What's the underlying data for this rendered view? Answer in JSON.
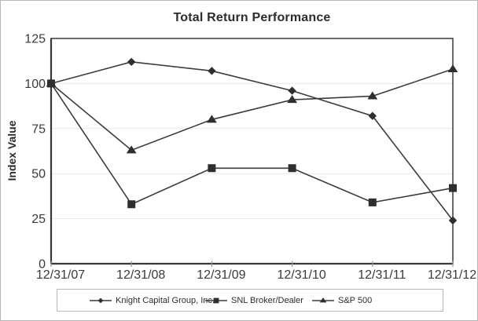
{
  "window": {
    "background": "#ffffff",
    "border_color": "#b7b7b7"
  },
  "chart_data": {
    "type": "line",
    "title": "Total Return Performance",
    "ylabel": "Index Value",
    "xlabel": "",
    "categories": [
      "12/31/07",
      "12/31/08",
      "12/31/09",
      "12/31/10",
      "12/31/11",
      "12/31/12"
    ],
    "series": [
      {
        "name": "Knight Capital Group, Inc.",
        "marker": "diamond",
        "values": [
          100,
          112,
          107,
          96,
          82,
          24
        ]
      },
      {
        "name": "SNL Broker/Dealer",
        "marker": "square",
        "values": [
          100,
          33,
          53,
          53,
          34,
          42
        ]
      },
      {
        "name": "S&P 500",
        "marker": "triangle",
        "values": [
          100,
          63,
          80,
          91,
          93,
          108
        ]
      }
    ],
    "ylim": [
      0,
      125
    ],
    "yticks": [
      0,
      25,
      50,
      75,
      100,
      125
    ],
    "grid": true,
    "legend_position": "bottom",
    "line_color": "#3c3c3c",
    "marker_color": "#2f2f2f",
    "grid_color": "#e9e9e9",
    "axis_color": "#383838",
    "tick_color": "#9a9a9a",
    "text_color": "#3a3a3a"
  }
}
